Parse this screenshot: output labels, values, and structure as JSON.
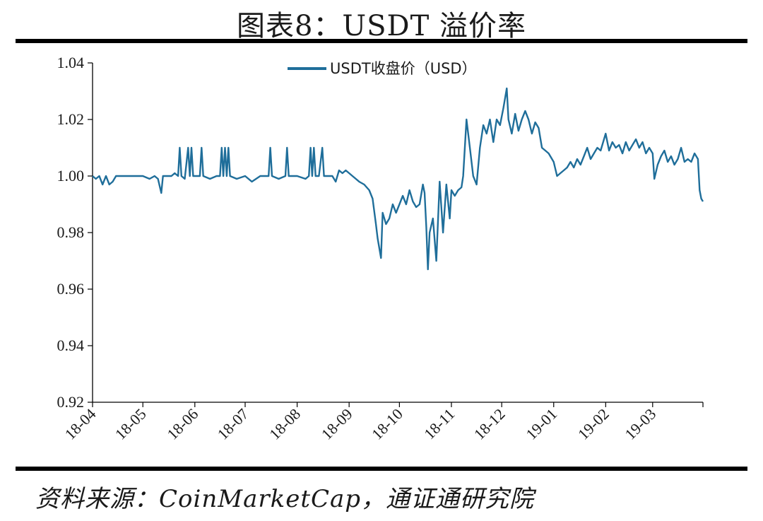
{
  "header": {
    "title": "图表8：USDT 溢价率"
  },
  "footer": {
    "source": "资料来源：CoinMarketCap，通证通研究院"
  },
  "chart_data": {
    "type": "line",
    "title": "图表8：USDT 溢价率",
    "xlabel": "",
    "ylabel": "",
    "ylim": [
      0.92,
      1.04
    ],
    "y_ticks": [
      "1.04",
      "1.02",
      "1.00",
      "0.98",
      "0.96",
      "0.94",
      "0.92"
    ],
    "x_ticks": [
      "18-04",
      "18-05",
      "18-06",
      "18-07",
      "18-08",
      "18-09",
      "18-10",
      "18-11",
      "18-12",
      "19-01",
      "19-02",
      "19-03"
    ],
    "legend": {
      "position": "top-center"
    },
    "grid": false,
    "colors": {
      "line": "#1f6e9a",
      "axis": "#000000"
    },
    "series": [
      {
        "name": "USDT收盘价（USD）",
        "points": [
          [
            "2018-04-01",
            1.0
          ],
          [
            "2018-04-03",
            0.999
          ],
          [
            "2018-04-05",
            1.0
          ],
          [
            "2018-04-07",
            0.997
          ],
          [
            "2018-04-09",
            1.0
          ],
          [
            "2018-04-11",
            0.997
          ],
          [
            "2018-04-13",
            0.998
          ],
          [
            "2018-04-15",
            1.0
          ],
          [
            "2018-04-20",
            1.0
          ],
          [
            "2018-04-25",
            1.0
          ],
          [
            "2018-05-01",
            1.0
          ],
          [
            "2018-05-05",
            0.999
          ],
          [
            "2018-05-08",
            1.0
          ],
          [
            "2018-05-10",
            0.999
          ],
          [
            "2018-05-12",
            0.994
          ],
          [
            "2018-05-13",
            1.0
          ],
          [
            "2018-05-18",
            1.0
          ],
          [
            "2018-05-20",
            1.001
          ],
          [
            "2018-05-22",
            1.0
          ],
          [
            "2018-05-23",
            1.01
          ],
          [
            "2018-05-24",
            1.0
          ],
          [
            "2018-05-26",
            0.999
          ],
          [
            "2018-05-28",
            1.01
          ],
          [
            "2018-05-29",
            1.0
          ],
          [
            "2018-05-30",
            1.01
          ],
          [
            "2018-05-31",
            1.0
          ],
          [
            "2018-06-04",
            1.0
          ],
          [
            "2018-06-05",
            1.01
          ],
          [
            "2018-06-06",
            1.0
          ],
          [
            "2018-06-10",
            0.999
          ],
          [
            "2018-06-14",
            1.0
          ],
          [
            "2018-06-16",
            1.0
          ],
          [
            "2018-06-17",
            1.01
          ],
          [
            "2018-06-18",
            1.0
          ],
          [
            "2018-06-19",
            1.01
          ],
          [
            "2018-06-20",
            1.0
          ],
          [
            "2018-06-21",
            1.01
          ],
          [
            "2018-06-22",
            1.0
          ],
          [
            "2018-06-26",
            0.999
          ],
          [
            "2018-07-01",
            1.0
          ],
          [
            "2018-07-05",
            0.998
          ],
          [
            "2018-07-10",
            1.0
          ],
          [
            "2018-07-15",
            1.0
          ],
          [
            "2018-07-16",
            1.01
          ],
          [
            "2018-07-17",
            1.0
          ],
          [
            "2018-07-21",
            0.999
          ],
          [
            "2018-07-25",
            1.0
          ],
          [
            "2018-07-26",
            1.01
          ],
          [
            "2018-07-27",
            1.0
          ],
          [
            "2018-08-01",
            1.0
          ],
          [
            "2018-08-06",
            0.999
          ],
          [
            "2018-08-08",
            1.0
          ],
          [
            "2018-08-09",
            1.01
          ],
          [
            "2018-08-10",
            1.0
          ],
          [
            "2018-08-11",
            1.01
          ],
          [
            "2018-08-12",
            1.0
          ],
          [
            "2018-08-14",
            1.0
          ],
          [
            "2018-08-16",
            1.01
          ],
          [
            "2018-08-17",
            1.0
          ],
          [
            "2018-08-22",
            1.0
          ],
          [
            "2018-08-24",
            0.998
          ],
          [
            "2018-08-26",
            1.002
          ],
          [
            "2018-08-28",
            1.001
          ],
          [
            "2018-08-30",
            1.002
          ],
          [
            "2018-09-01",
            1.001
          ],
          [
            "2018-09-03",
            1.0
          ],
          [
            "2018-09-05",
            0.999
          ],
          [
            "2018-09-07",
            0.998
          ],
          [
            "2018-09-10",
            0.997
          ],
          [
            "2018-09-13",
            0.995
          ],
          [
            "2018-09-15",
            0.992
          ],
          [
            "2018-09-17",
            0.983
          ],
          [
            "2018-09-18",
            0.978
          ],
          [
            "2018-09-20",
            0.971
          ],
          [
            "2018-09-21",
            0.987
          ],
          [
            "2018-09-23",
            0.983
          ],
          [
            "2018-09-25",
            0.985
          ],
          [
            "2018-09-27",
            0.99
          ],
          [
            "2018-09-29",
            0.987
          ],
          [
            "2018-10-01",
            0.99
          ],
          [
            "2018-10-03",
            0.993
          ],
          [
            "2018-10-05",
            0.99
          ],
          [
            "2018-10-07",
            0.995
          ],
          [
            "2018-10-09",
            0.991
          ],
          [
            "2018-10-11",
            0.989
          ],
          [
            "2018-10-13",
            0.99
          ],
          [
            "2018-10-15",
            0.997
          ],
          [
            "2018-10-16",
            0.994
          ],
          [
            "2018-10-17",
            0.982
          ],
          [
            "2018-10-18",
            0.967
          ],
          [
            "2018-10-19",
            0.98
          ],
          [
            "2018-10-21",
            0.985
          ],
          [
            "2018-10-23",
            0.97
          ],
          [
            "2018-10-25",
            0.998
          ],
          [
            "2018-10-27",
            0.98
          ],
          [
            "2018-10-29",
            0.997
          ],
          [
            "2018-10-31",
            0.985
          ],
          [
            "2018-11-01",
            0.995
          ],
          [
            "2018-11-03",
            0.993
          ],
          [
            "2018-11-05",
            0.995
          ],
          [
            "2018-11-07",
            0.996
          ],
          [
            "2018-11-08",
            1.0
          ],
          [
            "2018-11-10",
            1.02
          ],
          [
            "2018-11-12",
            1.01
          ],
          [
            "2018-11-14",
            1.0
          ],
          [
            "2018-11-16",
            0.997
          ],
          [
            "2018-11-18",
            1.01
          ],
          [
            "2018-11-20",
            1.018
          ],
          [
            "2018-11-22",
            1.015
          ],
          [
            "2018-11-24",
            1.02
          ],
          [
            "2018-11-26",
            1.012
          ],
          [
            "2018-11-28",
            1.02
          ],
          [
            "2018-11-30",
            1.018
          ],
          [
            "2018-12-02",
            1.024
          ],
          [
            "2018-12-04",
            1.031
          ],
          [
            "2018-12-05",
            1.02
          ],
          [
            "2018-12-07",
            1.015
          ],
          [
            "2018-12-09",
            1.022
          ],
          [
            "2018-12-11",
            1.016
          ],
          [
            "2018-12-13",
            1.02
          ],
          [
            "2018-12-15",
            1.023
          ],
          [
            "2018-12-17",
            1.02
          ],
          [
            "2018-12-19",
            1.015
          ],
          [
            "2018-12-21",
            1.019
          ],
          [
            "2018-12-23",
            1.017
          ],
          [
            "2018-12-25",
            1.01
          ],
          [
            "2018-12-27",
            1.009
          ],
          [
            "2018-12-29",
            1.008
          ],
          [
            "2019-01-01",
            1.005
          ],
          [
            "2019-01-03",
            1.0
          ],
          [
            "2019-01-05",
            1.001
          ],
          [
            "2019-01-07",
            1.002
          ],
          [
            "2019-01-09",
            1.003
          ],
          [
            "2019-01-11",
            1.005
          ],
          [
            "2019-01-13",
            1.003
          ],
          [
            "2019-01-15",
            1.006
          ],
          [
            "2019-01-17",
            1.004
          ],
          [
            "2019-01-19",
            1.007
          ],
          [
            "2019-01-21",
            1.01
          ],
          [
            "2019-01-23",
            1.006
          ],
          [
            "2019-01-25",
            1.008
          ],
          [
            "2019-01-27",
            1.01
          ],
          [
            "2019-01-29",
            1.009
          ],
          [
            "2019-02-01",
            1.015
          ],
          [
            "2019-02-03",
            1.009
          ],
          [
            "2019-02-05",
            1.012
          ],
          [
            "2019-02-07",
            1.01
          ],
          [
            "2019-02-09",
            1.011
          ],
          [
            "2019-02-11",
            1.008
          ],
          [
            "2019-02-13",
            1.012
          ],
          [
            "2019-02-15",
            1.009
          ],
          [
            "2019-02-17",
            1.011
          ],
          [
            "2019-02-19",
            1.013
          ],
          [
            "2019-02-21",
            1.01
          ],
          [
            "2019-02-23",
            1.012
          ],
          [
            "2019-02-25",
            1.008
          ],
          [
            "2019-02-27",
            1.01
          ],
          [
            "2019-03-01",
            1.008
          ],
          [
            "2019-03-02",
            0.999
          ],
          [
            "2019-03-04",
            1.004
          ],
          [
            "2019-03-06",
            1.007
          ],
          [
            "2019-03-08",
            1.009
          ],
          [
            "2019-03-10",
            1.005
          ],
          [
            "2019-03-12",
            1.007
          ],
          [
            "2019-03-14",
            1.004
          ],
          [
            "2019-03-16",
            1.006
          ],
          [
            "2019-03-18",
            1.01
          ],
          [
            "2019-03-20",
            1.005
          ],
          [
            "2019-03-22",
            1.006
          ],
          [
            "2019-03-24",
            1.005
          ],
          [
            "2019-03-26",
            1.008
          ],
          [
            "2019-03-28",
            1.006
          ],
          [
            "2019-03-29",
            0.995
          ],
          [
            "2019-03-30",
            0.992
          ],
          [
            "2019-03-31",
            0.991
          ]
        ]
      }
    ]
  }
}
